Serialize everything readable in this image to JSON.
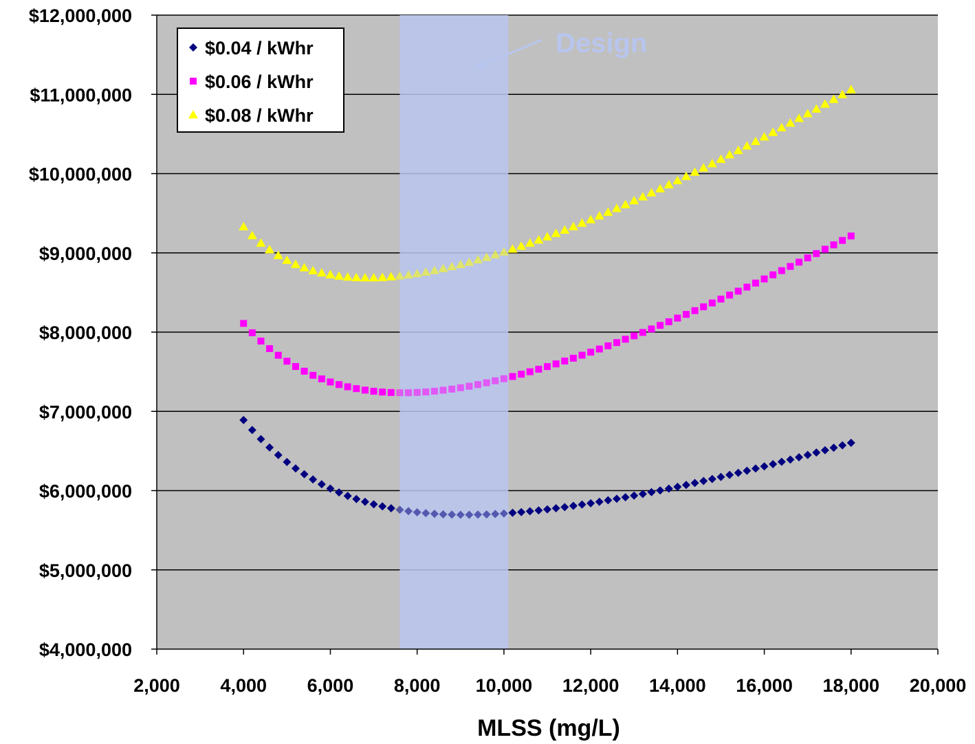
{
  "chart_data": {
    "type": "scatter",
    "title": "",
    "xlabel": "MLSS (mg/L)",
    "ylabel": "",
    "xlim": [
      2000,
      20000
    ],
    "ylim": [
      4000000,
      12000000
    ],
    "x_ticks": [
      2000,
      4000,
      6000,
      8000,
      10000,
      12000,
      14000,
      16000,
      18000,
      20000
    ],
    "x_tick_labels": [
      "2,000",
      "4,000",
      "6,000",
      "8,000",
      "10,000",
      "12,000",
      "14,000",
      "16,000",
      "18,000",
      "20,000"
    ],
    "y_ticks": [
      4000000,
      5000000,
      6000000,
      7000000,
      8000000,
      9000000,
      10000000,
      11000000,
      12000000
    ],
    "y_tick_labels": [
      "$4,000,000",
      "$5,000,000",
      "$6,000,000",
      "$7,000,000",
      "$8,000,000",
      "$9,000,000",
      "$10,000,000",
      "$11,000,000",
      "$12,000,000"
    ],
    "grid": "horizontal",
    "legend_position": "top-left",
    "x": [
      4000,
      4200,
      4400,
      4600,
      4800,
      5000,
      5200,
      5400,
      5600,
      5800,
      6000,
      6200,
      6400,
      6600,
      6800,
      7000,
      7200,
      7400,
      7600,
      7800,
      8000,
      8200,
      8400,
      8600,
      8800,
      9000,
      9200,
      9400,
      9600,
      9800,
      10000,
      10200,
      10400,
      10600,
      10800,
      11000,
      11200,
      11400,
      11600,
      11800,
      12000,
      12200,
      12400,
      12600,
      12800,
      13000,
      13200,
      13400,
      13600,
      13800,
      14000,
      14200,
      14400,
      14600,
      14800,
      15000,
      15200,
      15400,
      15600,
      15800,
      16000,
      16200,
      16400,
      16600,
      16800,
      17000,
      17200,
      17400,
      17600,
      17800,
      18000
    ],
    "series": [
      {
        "name": "$0.04 / kWhr",
        "marker": "diamond",
        "color": "#000080",
        "values": [
          6890000,
          6765000,
          6650000,
          6545000,
          6449000,
          6361000,
          6280000,
          6207000,
          6141000,
          6080000,
          6026000,
          5977000,
          5933000,
          5894000,
          5859000,
          5828000,
          5801000,
          5778000,
          5758000,
          5741000,
          5727000,
          5716000,
          5707000,
          5701000,
          5697000,
          5695000,
          5695000,
          5697000,
          5700000,
          5705000,
          5712000,
          5720000,
          5729000,
          5740000,
          5751000,
          5764000,
          5778000,
          5792000,
          5808000,
          5824000,
          5841000,
          5859000,
          5878000,
          5897000,
          5917000,
          5937000,
          5958000,
          5980000,
          6002000,
          6025000,
          6048000,
          6072000,
          6096000,
          6121000,
          6146000,
          6172000,
          6198000,
          6224000,
          6251000,
          6279000,
          6306000,
          6334000,
          6363000,
          6391000,
          6421000,
          6450000,
          6480000,
          6510000,
          6541000,
          6572000,
          6603000
        ]
      },
      {
        "name": "$0.06 / kWhr",
        "marker": "square",
        "color": "#ff00ff",
        "values": [
          8110000,
          7992000,
          7887000,
          7792000,
          7708000,
          7633000,
          7566000,
          7507000,
          7455000,
          7410000,
          7371000,
          7338000,
          7310000,
          7287000,
          7268000,
          7254000,
          7244000,
          7238000,
          7235000,
          7235000,
          7239000,
          7245000,
          7255000,
          7267000,
          7281000,
          7298000,
          7317000,
          7338000,
          7361000,
          7386000,
          7412000,
          7440000,
          7469000,
          7500000,
          7532000,
          7565000,
          7599000,
          7635000,
          7671000,
          7709000,
          7747000,
          7787000,
          7827000,
          7868000,
          7910000,
          7953000,
          7996000,
          8040000,
          8085000,
          8131000,
          8177000,
          8224000,
          8271000,
          8319000,
          8368000,
          8417000,
          8467000,
          8517000,
          8568000,
          8619000,
          8671000,
          8723000,
          8776000,
          8829000,
          8883000,
          8937000,
          8991000,
          9046000,
          9101000,
          9157000,
          9213000
        ]
      },
      {
        "name": "$0.08 / kWhr",
        "marker": "triangle",
        "color": "#ffff00",
        "values": [
          9330000,
          9218000,
          9123000,
          9040000,
          8968000,
          8907000,
          8855000,
          8812000,
          8776000,
          8747000,
          8724000,
          8707000,
          8695000,
          8688000,
          8685000,
          8686000,
          8690000,
          8698000,
          8709000,
          8722000,
          8738000,
          8757000,
          8778000,
          8801000,
          8826000,
          8853000,
          8881000,
          8912000,
          8944000,
          8977000,
          9012000,
          9048000,
          9085000,
          9123000,
          9163000,
          9203000,
          9245000,
          9287000,
          9331000,
          9375000,
          9420000,
          9466000,
          9513000,
          9561000,
          9609000,
          9658000,
          9707000,
          9758000,
          9809000,
          9860000,
          9912000,
          9965000,
          10018000,
          10072000,
          10126000,
          10181000,
          10237000,
          10292000,
          10349000,
          10406000,
          10463000,
          10521000,
          10579000,
          10638000,
          10697000,
          10756000,
          10816000,
          10877000,
          10937000,
          10998000,
          11060000
        ]
      }
    ],
    "highlight_band": {
      "x_from": 7600,
      "x_to": 10100,
      "color": "#b8c5ee"
    },
    "annotation": {
      "text": "Design",
      "color": "#b8c5ee"
    },
    "plot_background": "#c0c0c0"
  }
}
